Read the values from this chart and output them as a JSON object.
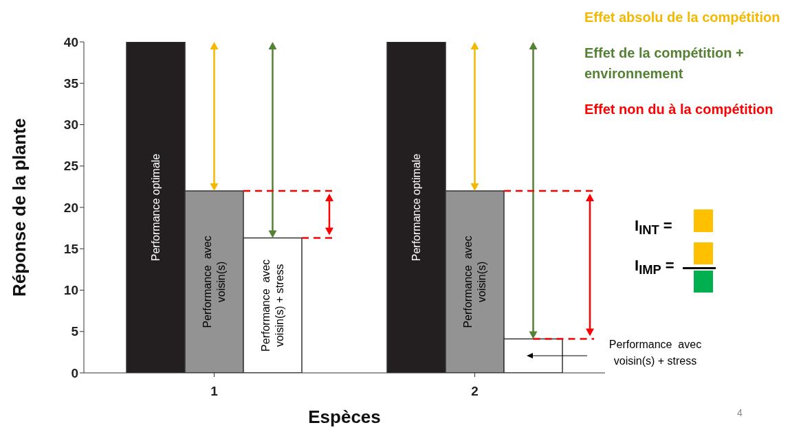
{
  "chart_data": {
    "type": "bar",
    "xlabel": "Espèces",
    "ylabel": "Réponse de la plante",
    "categories": [
      "1",
      "2"
    ],
    "series": [
      {
        "name": "Performance optimale",
        "color": "#231f20",
        "values": [
          40,
          40
        ]
      },
      {
        "name": "Performance  avec voisin(s)",
        "color": "#939393",
        "values": [
          22,
          22
        ]
      },
      {
        "name": "Performance  avec voisin(s) + stress",
        "color": "#ffffff",
        "values": [
          16.3,
          4.1
        ]
      }
    ],
    "ylim": [
      0,
      40
    ],
    "yticks": [
      0,
      5,
      10,
      15,
      20,
      25,
      30,
      35,
      40
    ],
    "grid": false,
    "legend": false,
    "annotations": [
      "Effet absolu de la compétition",
      "Effet de la compétition + environnement",
      "Effet non du à la compétition",
      "I$_{INT}$ =",
      "I$_{IMP}$ =",
      "4"
    ]
  }
}
